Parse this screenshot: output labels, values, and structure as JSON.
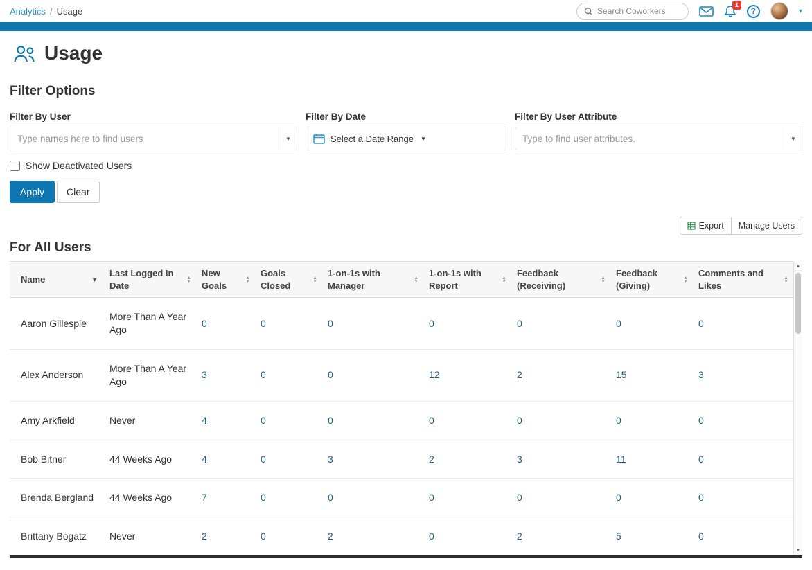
{
  "topbar": {
    "breadcrumb": {
      "parent": "Analytics",
      "separator": "/",
      "current": "Usage"
    },
    "search_placeholder": "Search Coworkers",
    "notification_badge": "1",
    "help_glyph": "?"
  },
  "page": {
    "title": "Usage"
  },
  "filters": {
    "heading": "Filter Options",
    "user_label": "Filter By User",
    "user_placeholder": "Type names here to find users",
    "date_label": "Filter By Date",
    "date_value": "Select a Date Range",
    "attribute_label": "Filter By User Attribute",
    "attribute_placeholder": "Type to find user attributes.",
    "show_deactivated_label": "Show Deactivated Users",
    "apply_label": "Apply",
    "clear_label": "Clear"
  },
  "toolbar": {
    "export_label": "Export",
    "manage_users_label": "Manage Users"
  },
  "table": {
    "heading": "For All Users",
    "columns": [
      "Name",
      "Last Logged In Date",
      "New Goals",
      "Goals Closed",
      "1-on-1s with Manager",
      "1-on-1s with Report",
      "Feedback (Receiving)",
      "Feedback (Giving)",
      "Comments and Likes"
    ],
    "sort_caret": "▼",
    "sort_up": "▲",
    "sort_down": "▼",
    "rows": [
      [
        "Aaron Gillespie",
        "More Than A Year Ago",
        "0",
        "0",
        "0",
        "0",
        "0",
        "0",
        "0"
      ],
      [
        "Alex Anderson",
        "More Than A Year Ago",
        "3",
        "0",
        "0",
        "12",
        "2",
        "15",
        "3"
      ],
      [
        "Amy Arkfield",
        "Never",
        "4",
        "0",
        "0",
        "0",
        "0",
        "0",
        "0"
      ],
      [
        "Bob Bitner",
        "44 Weeks Ago",
        "4",
        "0",
        "3",
        "2",
        "3",
        "11",
        "0"
      ],
      [
        "Brenda Bergland",
        "44 Weeks Ago",
        "7",
        "0",
        "0",
        "0",
        "0",
        "0",
        "0"
      ],
      [
        "Brittany Bogatz",
        "Never",
        "2",
        "0",
        "2",
        "0",
        "2",
        "5",
        "0"
      ]
    ]
  },
  "colors": {
    "accent": "#1176ab",
    "link": "#2b95c9",
    "badge": "#e03c31",
    "metric_text": "#23617f"
  }
}
